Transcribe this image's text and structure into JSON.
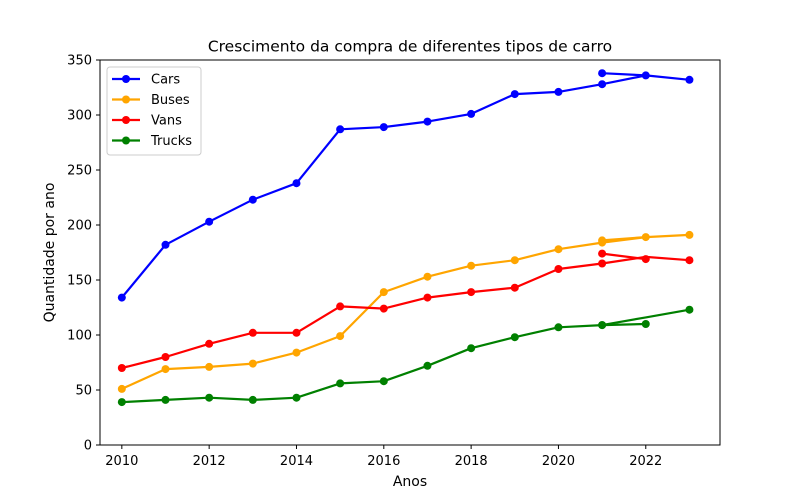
{
  "chart_data": {
    "type": "line",
    "title": "Crescimento da compra de diferentes tipos de carro",
    "xlabel": "Anos",
    "ylabel": "Quantidade por ano",
    "xlim": [
      2009.5,
      2023.7
    ],
    "ylim": [
      0,
      350
    ],
    "xticks": [
      2010,
      2012,
      2014,
      2016,
      2018,
      2020,
      2022
    ],
    "yticks": [
      0,
      50,
      100,
      150,
      200,
      250,
      300,
      350
    ],
    "grid": false,
    "legend_position": "top-left",
    "series": [
      {
        "name": "Cars",
        "color": "#0000ff",
        "x": [
          2010,
          2011,
          2012,
          2013,
          2014,
          2015,
          2016,
          2017,
          2018,
          2019,
          2020,
          2021,
          2022,
          2023
        ],
        "y": [
          134,
          182,
          203,
          223,
          238,
          287,
          289,
          294,
          301,
          319,
          321,
          328,
          336,
          332
        ],
        "extra_points": [
          [
            2021,
            338
          ],
          [
            2022,
            336
          ]
        ]
      },
      {
        "name": "Buses",
        "color": "#ffa500",
        "x": [
          2010,
          2011,
          2012,
          2013,
          2014,
          2015,
          2016,
          2017,
          2018,
          2019,
          2020,
          2021,
          2022,
          2023
        ],
        "y": [
          51,
          69,
          71,
          74,
          84,
          99,
          139,
          153,
          163,
          168,
          178,
          184,
          189,
          191
        ],
        "extra_points": [
          [
            2021,
            186
          ],
          [
            2022,
            189
          ]
        ]
      },
      {
        "name": "Vans",
        "color": "#ff0000",
        "x": [
          2010,
          2011,
          2012,
          2013,
          2014,
          2015,
          2016,
          2017,
          2018,
          2019,
          2020,
          2021,
          2022,
          2023
        ],
        "y": [
          70,
          80,
          92,
          102,
          102,
          126,
          124,
          134,
          139,
          143,
          160,
          165,
          171,
          168
        ],
        "extra_points": [
          [
            2021,
            174
          ],
          [
            2022,
            169
          ]
        ]
      },
      {
        "name": "Trucks",
        "color": "#008000",
        "x": [
          2010,
          2011,
          2012,
          2013,
          2014,
          2015,
          2016,
          2017,
          2018,
          2019,
          2020,
          2021,
          2022,
          2023
        ],
        "y": [
          39,
          41,
          43,
          41,
          43,
          56,
          58,
          72,
          88,
          98,
          107,
          109,
          116,
          123
        ],
        "extra_points": [
          [
            2021,
            109
          ],
          [
            2022,
            110
          ]
        ]
      }
    ]
  }
}
